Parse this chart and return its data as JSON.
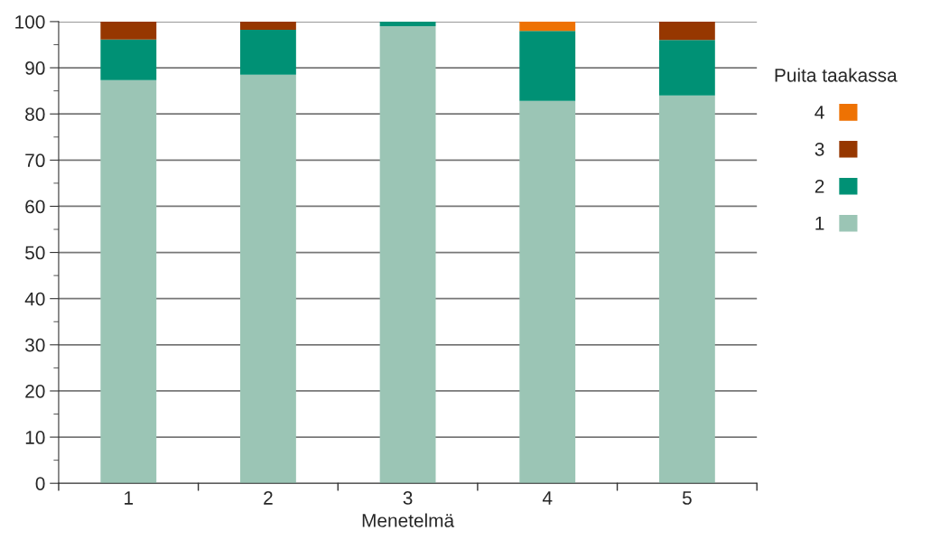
{
  "chart_data": {
    "type": "bar",
    "stacked": true,
    "xlabel": "Menetelmä",
    "legend_title": "Puita taakassa",
    "categories": [
      "1",
      "2",
      "3",
      "4",
      "5"
    ],
    "series": [
      {
        "name": "1",
        "color": "#9bc5b5",
        "values": [
          87.3,
          88.5,
          99,
          82.8,
          84
        ]
      },
      {
        "name": "2",
        "color": "#009175",
        "values": [
          8.8,
          9.7,
          1,
          15.2,
          12
        ]
      },
      {
        "name": "3",
        "color": "#963700",
        "values": [
          3.9,
          1.8,
          null,
          null,
          4
        ]
      },
      {
        "name": "4",
        "color": "#ee7203",
        "values": [
          null,
          null,
          null,
          2,
          null
        ]
      }
    ],
    "ylim": [
      0,
      100
    ],
    "yticks": [
      0,
      10,
      20,
      30,
      40,
      50,
      60,
      70,
      80,
      90,
      100
    ],
    "grid": "y",
    "legend": "right"
  }
}
